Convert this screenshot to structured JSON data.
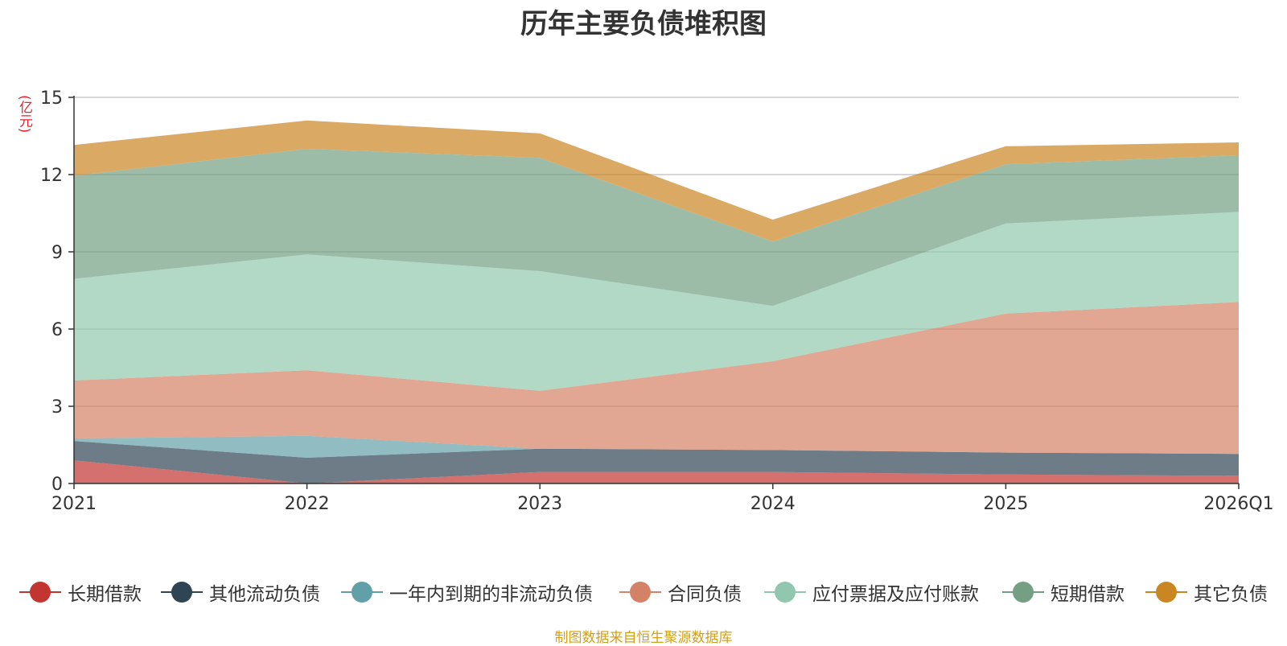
{
  "chart_data": {
    "type": "area",
    "stacked": true,
    "title": "历年主要负债堆积图",
    "ylabel": "(亿元)",
    "xlabel": "",
    "categories": [
      "2021",
      "2022",
      "2023",
      "2024",
      "2025",
      "2026Q1"
    ],
    "ylim": [
      0,
      15
    ],
    "yticks": [
      0,
      3,
      6,
      9,
      12,
      15
    ],
    "grid": true,
    "legend_position": "bottom",
    "series": [
      {
        "name": "长期借款",
        "color": "#c23531",
        "values": [
          0.9,
          0.0,
          0.45,
          0.45,
          0.35,
          0.3
        ]
      },
      {
        "name": "其他流动负债",
        "color": "#2f4554",
        "values": [
          0.75,
          1.0,
          0.9,
          0.85,
          0.85,
          0.85
        ]
      },
      {
        "name": "一年内到期的非流动负债",
        "color": "#61a0a8",
        "values": [
          0.1,
          0.85,
          0.0,
          0.0,
          0.0,
          0.0
        ]
      },
      {
        "name": "合同负债",
        "color": "#d48265",
        "values": [
          2.25,
          2.55,
          2.25,
          3.45,
          5.4,
          5.9
        ]
      },
      {
        "name": "应付票据及应付账款",
        "color": "#91c7ae",
        "values": [
          3.95,
          4.5,
          4.65,
          2.15,
          3.5,
          3.5
        ]
      },
      {
        "name": "短期借款",
        "color": "#749f83",
        "values": [
          4.0,
          4.1,
          4.4,
          2.5,
          2.3,
          2.2
        ]
      },
      {
        "name": "其它负债",
        "color": "#ca8622",
        "values": [
          1.2,
          1.1,
          0.95,
          0.85,
          0.7,
          0.5
        ]
      }
    ]
  },
  "source_note": "制图数据来自恒生聚源数据库"
}
